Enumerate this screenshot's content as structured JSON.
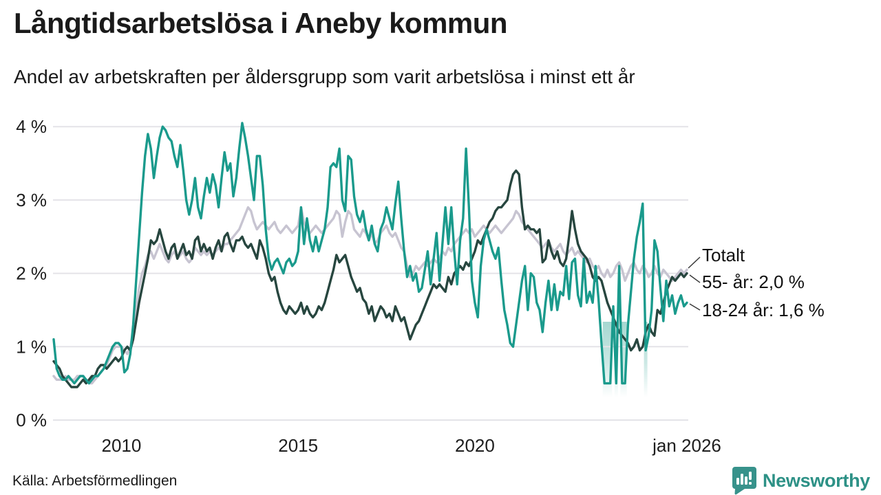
{
  "header": {
    "title": "Långtidsarbetslösa i Aneby kommun",
    "subtitle": "Andel av arbetskraften per åldersgrupp som varit arbetslösa i minst ett år"
  },
  "annotations": [
    {
      "label": "Totalt"
    },
    {
      "label": "55- år: 2,0 %"
    },
    {
      "label": "18-24 år: 1,6 %"
    }
  ],
  "footer": {
    "source": "Källa: Arbetsförmedlingen",
    "logo_text": "Newsworthy",
    "logo_icon": "bar-chart-speech-bubble-icon"
  },
  "colors": {
    "teal_line": "#1a9a8c",
    "dark_line": "#27463f",
    "gray_line": "#c7c4d1",
    "gridline": "#e4e3e8",
    "gap_band": "#8fcdc5",
    "logo_teal": "#37928b",
    "connector": "#3a3a3a"
  },
  "chart_data": {
    "type": "line",
    "unit": "%",
    "x_start": "2008-02",
    "x_end": "2026-01",
    "x_frequency": "monthly",
    "ylim": [
      0,
      4.3
    ],
    "yticks": [
      {
        "value": 0,
        "label": "0 %"
      },
      {
        "value": 1,
        "label": "1 %"
      },
      {
        "value": 2,
        "label": "2 %"
      },
      {
        "value": 3,
        "label": "3 %"
      },
      {
        "value": 4,
        "label": "4 %"
      }
    ],
    "xticks": [
      {
        "label": "2010",
        "month_index": 23
      },
      {
        "label": "2015",
        "month_index": 83
      },
      {
        "label": "2020",
        "month_index": 143
      },
      {
        "label": "jan 2026",
        "month_index": 215
      }
    ],
    "grid": true,
    "legend_position": "right-annotations",
    "gap_bands": [
      {
        "start_index": 187,
        "end_index": 189
      },
      {
        "start_index": 191,
        "end_index": 191
      },
      {
        "start_index": 193,
        "end_index": 194
      },
      {
        "start_index": 201,
        "end_index": 201
      }
    ],
    "series": [
      {
        "name": "Totalt",
        "color": "#c7c4d1",
        "last_value": 2.05,
        "values": [
          0.6,
          0.55,
          0.55,
          0.55,
          0.6,
          0.55,
          0.55,
          0.55,
          0.6,
          0.6,
          0.6,
          0.55,
          0.5,
          0.5,
          0.55,
          0.6,
          0.65,
          0.7,
          0.75,
          0.85,
          0.95,
          1.0,
          1.0,
          1.0,
          0.95,
          0.9,
          1.0,
          1.2,
          1.5,
          1.8,
          2.0,
          2.1,
          2.25,
          2.3,
          2.2,
          2.3,
          2.4,
          2.3,
          2.2,
          2.15,
          2.25,
          2.3,
          2.2,
          2.25,
          2.3,
          2.2,
          2.15,
          2.2,
          2.35,
          2.3,
          2.25,
          2.3,
          2.25,
          2.3,
          2.25,
          2.3,
          2.35,
          2.3,
          2.4,
          2.4,
          2.45,
          2.5,
          2.55,
          2.6,
          2.7,
          2.8,
          2.9,
          2.85,
          2.7,
          2.6,
          2.65,
          2.7,
          2.65,
          2.6,
          2.65,
          2.7,
          2.6,
          2.55,
          2.6,
          2.65,
          2.6,
          2.55,
          2.6,
          2.65,
          2.9,
          2.7,
          2.6,
          2.55,
          2.6,
          2.65,
          2.6,
          2.55,
          2.6,
          2.65,
          2.7,
          2.75,
          2.85,
          2.8,
          2.5,
          2.7,
          2.85,
          2.8,
          2.6,
          2.55,
          2.5,
          2.6,
          2.55,
          2.45,
          2.55,
          2.4,
          2.45,
          2.55,
          2.6,
          2.65,
          2.55,
          2.5,
          2.55,
          2.45,
          2.35,
          2.3,
          2.1,
          1.95,
          2.0,
          2.1,
          2.05,
          2.1,
          2.15,
          2.1,
          2.15,
          2.2,
          2.15,
          2.2,
          2.3,
          2.25,
          2.35,
          2.3,
          2.4,
          2.45,
          2.5,
          2.55,
          2.6,
          2.55,
          2.6,
          2.5,
          2.55,
          2.6,
          2.65,
          2.6,
          2.55,
          2.6,
          2.65,
          2.6,
          2.55,
          2.6,
          2.65,
          2.7,
          2.75,
          2.85,
          2.8,
          2.7,
          2.65,
          2.6,
          2.55,
          2.5,
          2.45,
          2.4,
          2.35,
          2.4,
          2.45,
          2.35,
          2.3,
          2.35,
          2.4,
          2.3,
          2.25,
          2.3,
          2.35,
          2.25,
          2.3,
          2.25,
          2.2,
          2.15,
          2.2,
          2.1,
          2.05,
          2.1,
          2.0,
          1.95,
          2.05,
          1.95,
          2.0,
          2.1,
          2.15,
          2.05,
          1.9,
          2.0,
          2.1,
          2.15,
          2.05,
          2.0,
          2.1,
          2.05,
          1.95,
          2.0,
          2.1,
          2.0,
          1.95,
          2.05,
          2.0,
          1.95,
          1.9,
          1.95,
          2.0,
          2.05,
          2.0,
          2.05
        ]
      },
      {
        "name": "55- år",
        "color": "#27463f",
        "last_value": 2.0,
        "values": [
          0.8,
          0.75,
          0.7,
          0.6,
          0.55,
          0.5,
          0.45,
          0.45,
          0.45,
          0.5,
          0.55,
          0.5,
          0.55,
          0.6,
          0.6,
          0.7,
          0.75,
          0.75,
          0.7,
          0.75,
          0.8,
          0.85,
          0.8,
          0.85,
          0.95,
          1.0,
          0.95,
          1.1,
          1.35,
          1.6,
          1.8,
          2.0,
          2.2,
          2.45,
          2.4,
          2.45,
          2.6,
          2.45,
          2.3,
          2.2,
          2.35,
          2.4,
          2.2,
          2.3,
          2.4,
          2.25,
          2.3,
          2.2,
          2.45,
          2.5,
          2.3,
          2.4,
          2.3,
          2.35,
          2.2,
          2.35,
          2.45,
          2.3,
          2.5,
          2.55,
          2.4,
          2.3,
          2.45,
          2.45,
          2.5,
          2.4,
          2.35,
          2.4,
          2.3,
          2.2,
          2.45,
          2.35,
          2.2,
          2.0,
          1.9,
          1.95,
          1.75,
          1.6,
          1.5,
          1.45,
          1.55,
          1.5,
          1.45,
          1.5,
          1.6,
          1.45,
          1.55,
          1.45,
          1.4,
          1.45,
          1.55,
          1.5,
          1.6,
          1.75,
          1.9,
          2.05,
          2.25,
          2.15,
          2.2,
          2.25,
          2.1,
          1.95,
          1.85,
          1.75,
          1.8,
          1.65,
          1.6,
          1.45,
          1.55,
          1.35,
          1.45,
          1.55,
          1.5,
          1.4,
          1.45,
          1.35,
          1.55,
          1.45,
          1.35,
          1.4,
          1.25,
          1.1,
          1.2,
          1.3,
          1.35,
          1.45,
          1.55,
          1.65,
          1.75,
          1.85,
          1.8,
          1.85,
          1.8,
          1.75,
          1.95,
          1.85,
          2.0,
          2.05,
          2.1,
          2.05,
          2.15,
          2.1,
          2.2,
          2.3,
          2.45,
          2.4,
          2.5,
          2.6,
          2.7,
          2.75,
          2.85,
          2.9,
          2.9,
          2.95,
          3.0,
          3.2,
          3.35,
          3.4,
          3.35,
          2.9,
          2.6,
          2.65,
          2.6,
          2.6,
          2.55,
          2.6,
          2.15,
          2.2,
          2.45,
          2.3,
          2.2,
          2.3,
          2.15,
          2.1,
          2.2,
          2.5,
          2.85,
          2.6,
          2.4,
          2.3,
          2.25,
          2.2,
          2.1,
          1.95,
          1.9,
          1.95,
          1.9,
          1.75,
          1.6,
          1.5,
          1.4,
          1.3,
          1.2,
          1.15,
          1.1,
          1.05,
          0.95,
          1.0,
          1.1,
          0.95,
          1.0,
          1.2,
          1.3,
          1.2,
          1.15,
          1.5,
          1.45,
          1.6,
          1.75,
          1.85,
          1.95,
          1.9,
          1.95,
          2.0,
          1.95,
          2.0
        ]
      },
      {
        "name": "18-24 år",
        "color": "#1a9a8c",
        "last_value": 1.6,
        "values": [
          1.1,
          0.7,
          0.6,
          0.55,
          0.55,
          0.6,
          0.55,
          0.5,
          0.55,
          0.6,
          0.6,
          0.55,
          0.5,
          0.55,
          0.6,
          0.6,
          0.65,
          0.7,
          0.8,
          0.9,
          1.0,
          1.05,
          1.05,
          1.0,
          0.65,
          0.7,
          0.9,
          1.3,
          1.9,
          2.5,
          3.1,
          3.6,
          3.9,
          3.7,
          3.3,
          3.6,
          3.85,
          4.0,
          3.95,
          3.85,
          3.8,
          3.6,
          3.45,
          3.75,
          3.4,
          3.0,
          2.8,
          3.0,
          3.3,
          2.9,
          2.75,
          3.05,
          3.3,
          3.1,
          3.35,
          3.2,
          2.9,
          3.3,
          3.65,
          3.4,
          3.5,
          3.05,
          3.3,
          3.7,
          4.05,
          3.85,
          3.6,
          3.3,
          3.0,
          3.6,
          3.6,
          3.2,
          2.6,
          2.2,
          2.05,
          2.15,
          2.2,
          2.1,
          2.0,
          2.15,
          2.2,
          2.1,
          2.15,
          2.3,
          2.9,
          2.4,
          2.75,
          2.45,
          2.3,
          2.5,
          2.3,
          2.45,
          2.6,
          2.9,
          3.45,
          3.5,
          3.45,
          3.7,
          3.0,
          2.85,
          3.6,
          3.55,
          3.05,
          2.8,
          2.7,
          2.85,
          2.6,
          2.45,
          2.65,
          2.4,
          2.3,
          2.6,
          2.7,
          2.9,
          2.75,
          2.6,
          2.95,
          3.25,
          2.75,
          2.3,
          1.95,
          2.1,
          1.9,
          2.0,
          1.75,
          1.8,
          2.05,
          2.3,
          1.85,
          2.2,
          2.55,
          1.9,
          2.4,
          2.9,
          2.4,
          2.9,
          2.3,
          1.85,
          2.45,
          2.75,
          3.7,
          2.9,
          1.9,
          1.6,
          1.4,
          2.1,
          2.45,
          2.6,
          2.45,
          2.3,
          2.2,
          2.35,
          1.9,
          1.5,
          1.3,
          1.05,
          1.0,
          1.3,
          1.6,
          1.9,
          2.1,
          1.5,
          2.0,
          1.95,
          1.6,
          1.5,
          1.2,
          1.6,
          1.9,
          1.5,
          1.85,
          1.5,
          1.75,
          1.7,
          2.1,
          1.65,
          2.15,
          2.2,
          1.7,
          1.55,
          2.2,
          1.6,
          1.75,
          1.6,
          2.1,
          1.65,
          1.05,
          0.5,
          0.5,
          0.5,
          1.55,
          0.5,
          2.1,
          0.5,
          0.5,
          1.3,
          1.75,
          2.2,
          2.5,
          2.7,
          2.95,
          0.95,
          1.15,
          1.5,
          2.45,
          2.3,
          1.8,
          1.35,
          1.9,
          1.55,
          1.7,
          1.45,
          1.6,
          1.7,
          1.55,
          1.6
        ]
      }
    ]
  }
}
